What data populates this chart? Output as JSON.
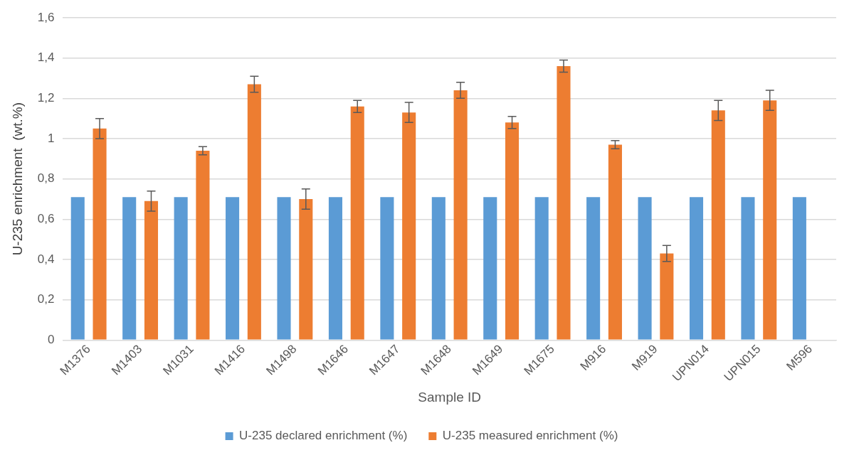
{
  "chart_data": {
    "type": "bar",
    "xlabel": "Sample ID",
    "ylabel": "U-235 enrichment  (wt.%)",
    "categories": [
      "M1376",
      "M1403",
      "M1031",
      "M1416",
      "M1498",
      "M1646",
      "M1647",
      "M1648",
      "M1649",
      "M1675",
      "M916",
      "M919",
      "UPN014",
      "UPN015",
      "M596"
    ],
    "series": [
      {
        "name": "U-235 declared enrichment (%)",
        "color": "#5b9bd5",
        "values": [
          0.71,
          0.71,
          0.71,
          0.71,
          0.71,
          0.71,
          0.71,
          0.71,
          0.71,
          0.71,
          0.71,
          0.71,
          0.71,
          0.71,
          0.71
        ]
      },
      {
        "name": "U-235 measured enrichment (%)",
        "color": "#ed7d31",
        "values": [
          1.05,
          0.69,
          0.94,
          1.27,
          0.7,
          1.16,
          1.13,
          1.24,
          1.08,
          1.36,
          0.97,
          0.43,
          1.14,
          1.19,
          0
        ],
        "errors": [
          0.05,
          0.05,
          0.02,
          0.04,
          0.05,
          0.03,
          0.05,
          0.04,
          0.03,
          0.03,
          0.02,
          0.04,
          0.05,
          0.05,
          null
        ]
      }
    ],
    "ylim": [
      0,
      1.6
    ],
    "yticks": [
      0,
      {
        "value": 0.2,
        "label": "0,2"
      },
      {
        "value": 0.4,
        "label": "0,4"
      },
      {
        "value": 0.6,
        "label": "0,6"
      },
      {
        "value": 0.8,
        "label": "0,8"
      },
      1,
      {
        "value": 1.2,
        "label": "1,2"
      },
      {
        "value": 1.4,
        "label": "1,4"
      },
      {
        "value": 1.6,
        "label": "1,6"
      }
    ],
    "grid": "y",
    "legend": "bottom"
  }
}
